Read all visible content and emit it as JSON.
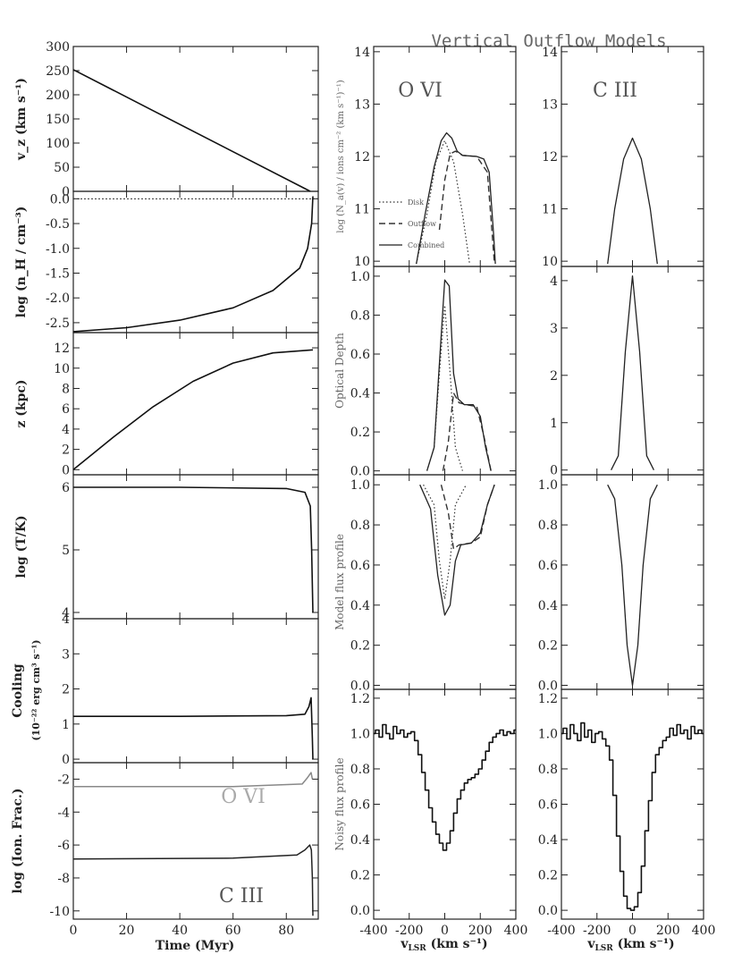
{
  "figure_title": "Vertical Outflow Models",
  "left_xlabel": "Time (Myr)",
  "right_xlabel": "v",
  "right_xlabel_sub": "LSR",
  "right_xlabel_units": " (km s⁻¹)",
  "ion_labels": [
    "O VI",
    "C III"
  ],
  "legend": [
    "Disk",
    "Outflow",
    "Combined"
  ],
  "chart_data": [
    {
      "panel": "vz",
      "type": "line",
      "ylabel": "v_z (km s⁻¹)",
      "ylim": [
        0,
        300
      ],
      "yticks": [
        0,
        50,
        100,
        150,
        200,
        250,
        300
      ],
      "x": [
        0,
        30,
        60,
        89
      ],
      "y": [
        252,
        167,
        82,
        0
      ]
    },
    {
      "panel": "density",
      "type": "line",
      "ylabel": "log (n_H / cm⁻³)",
      "ylim": [
        -2.7,
        0.15
      ],
      "yticks": [
        0.0,
        -0.5,
        -1.0,
        -1.5,
        -2.0,
        -2.5
      ],
      "x": [
        0,
        20,
        40,
        60,
        75,
        85,
        88,
        89.5,
        90
      ],
      "y": [
        -2.68,
        -2.6,
        -2.45,
        -2.2,
        -1.85,
        -1.4,
        -1.0,
        -0.5,
        0.05
      ]
    },
    {
      "panel": "height",
      "type": "line",
      "ylabel": "z (kpc)",
      "ylim": [
        -0.5,
        13.5
      ],
      "yticks": [
        0,
        2,
        4,
        6,
        8,
        10,
        12
      ],
      "x": [
        0,
        15,
        30,
        45,
        60,
        75,
        90
      ],
      "y": [
        0,
        3.2,
        6.2,
        8.7,
        10.5,
        11.5,
        11.8
      ]
    },
    {
      "panel": "temperature",
      "type": "line",
      "ylabel": "log (T/K)",
      "ylim": [
        3.9,
        6.2
      ],
      "yticks": [
        4,
        5,
        6
      ],
      "x": [
        0,
        40,
        80,
        87,
        89,
        89.5,
        90
      ],
      "y": [
        6.0,
        6.0,
        5.98,
        5.92,
        5.7,
        5.0,
        4.0
      ]
    },
    {
      "panel": "cooling",
      "type": "line",
      "ylabel": "Cooling (10⁻²² erg cm³ s⁻¹)",
      "ylim": [
        -0.1,
        4
      ],
      "yticks": [
        0,
        1,
        2,
        3,
        4
      ],
      "x": [
        0,
        40,
        80,
        87,
        88.5,
        89.3,
        89.8,
        90
      ],
      "y": [
        1.22,
        1.22,
        1.24,
        1.28,
        1.5,
        1.75,
        0.6,
        0.0
      ]
    },
    {
      "panel": "ionfrac",
      "type": "line",
      "ylabel": "log (Ion. Frac.)",
      "ylim": [
        -10.5,
        -1
      ],
      "yticks": [
        -2,
        -4,
        -6,
        -8,
        -10
      ],
      "series": [
        {
          "name": "O VI",
          "x": [
            0,
            60,
            86,
            88,
            89.3,
            89.8
          ],
          "y": [
            -2.45,
            -2.45,
            -2.3,
            -1.9,
            -1.6,
            -2.0
          ]
        },
        {
          "name": "C III",
          "x": [
            0,
            60,
            84,
            87,
            88.8,
            89.4,
            89.8,
            90
          ],
          "y": [
            -6.85,
            -6.8,
            -6.6,
            -6.3,
            -6.0,
            -6.3,
            -8.0,
            -10.3
          ]
        }
      ]
    },
    {
      "panel": "column_ovi",
      "type": "line",
      "ylabel": "log (N_a(v) / ions cm⁻² (km s⁻¹)⁻¹)",
      "ylim": [
        9.9,
        14.1
      ],
      "yticks": [
        10,
        11,
        12,
        13,
        14
      ],
      "series": [
        {
          "name": "Disk",
          "x": [
            -160,
            -100,
            -50,
            0,
            50,
            100,
            140
          ],
          "y": [
            9.95,
            10.9,
            11.9,
            12.3,
            11.9,
            10.9,
            9.95
          ]
        },
        {
          "name": "Outflow",
          "x": [
            -30,
            0,
            30,
            60,
            100,
            180,
            240,
            280
          ],
          "y": [
            10.6,
            11.55,
            12.05,
            12.1,
            12.02,
            12.0,
            11.7,
            9.95
          ]
        },
        {
          "name": "Combined",
          "x": [
            -160,
            -110,
            -60,
            -20,
            10,
            40,
            70,
            100,
            180,
            220,
            250,
            275,
            285
          ],
          "y": [
            9.95,
            10.9,
            11.8,
            12.3,
            12.45,
            12.35,
            12.1,
            12.02,
            12.0,
            11.95,
            11.7,
            10.5,
            9.95
          ]
        }
      ]
    },
    {
      "panel": "column_ciii",
      "type": "line",
      "ylabel": "",
      "ylim": [
        9.9,
        14.1
      ],
      "yticks": [
        10,
        11,
        12,
        13,
        14
      ],
      "series": [
        {
          "name": "Combined",
          "x": [
            -140,
            -100,
            -50,
            0,
            50,
            100,
            140
          ],
          "y": [
            9.95,
            11.0,
            11.95,
            12.35,
            11.95,
            11.0,
            9.95
          ]
        }
      ]
    },
    {
      "panel": "tau_ovi",
      "type": "line",
      "ylabel": "Optical Depth",
      "ylim": [
        -0.02,
        1.05
      ],
      "yticks": [
        0.0,
        0.2,
        0.4,
        0.6,
        0.8,
        1.0
      ],
      "series": [
        {
          "name": "Disk",
          "x": [
            -100,
            -60,
            -30,
            0,
            30,
            60,
            100
          ],
          "y": [
            0.0,
            0.12,
            0.5,
            0.85,
            0.5,
            0.12,
            0.0
          ]
        },
        {
          "name": "Outflow",
          "x": [
            -10,
            20,
            50,
            80,
            120,
            180,
            220,
            260
          ],
          "y": [
            0.0,
            0.15,
            0.4,
            0.35,
            0.34,
            0.33,
            0.18,
            0.0
          ]
        },
        {
          "name": "Combined",
          "x": [
            -100,
            -60,
            -30,
            0,
            25,
            50,
            75,
            110,
            160,
            200,
            230,
            260
          ],
          "y": [
            0.0,
            0.12,
            0.55,
            0.98,
            0.95,
            0.5,
            0.37,
            0.34,
            0.34,
            0.28,
            0.12,
            0.0
          ]
        }
      ]
    },
    {
      "panel": "tau_ciii",
      "type": "line",
      "ylabel": "",
      "ylim": [
        -0.1,
        4.3
      ],
      "yticks": [
        0,
        1,
        2,
        3,
        4
      ],
      "series": [
        {
          "name": "Combined",
          "x": [
            -120,
            -80,
            -40,
            0,
            40,
            80,
            120
          ],
          "y": [
            0.0,
            0.3,
            2.5,
            4.1,
            2.5,
            0.3,
            0.0
          ]
        }
      ]
    },
    {
      "panel": "model_ovi",
      "type": "line",
      "ylabel": "Model flux profile",
      "ylim": [
        -0.02,
        1.05
      ],
      "yticks": [
        0.0,
        0.2,
        0.4,
        0.6,
        0.8,
        1.0
      ],
      "series": [
        {
          "name": "Disk",
          "x": [
            -120,
            -60,
            -30,
            0,
            30,
            60,
            120
          ],
          "y": [
            1.0,
            0.9,
            0.62,
            0.43,
            0.62,
            0.9,
            1.0
          ]
        },
        {
          "name": "Outflow",
          "x": [
            -20,
            20,
            50,
            80,
            150,
            200,
            240,
            280
          ],
          "y": [
            1.0,
            0.86,
            0.68,
            0.7,
            0.71,
            0.74,
            0.9,
            1.0
          ]
        },
        {
          "name": "Combined",
          "x": [
            -140,
            -80,
            -40,
            0,
            30,
            60,
            90,
            150,
            200,
            240,
            280
          ],
          "y": [
            1.0,
            0.88,
            0.55,
            0.35,
            0.4,
            0.62,
            0.7,
            0.71,
            0.76,
            0.9,
            1.0
          ]
        }
      ]
    },
    {
      "panel": "model_ciii",
      "type": "line",
      "ylabel": "",
      "ylim": [
        -0.02,
        1.05
      ],
      "yticks": [
        0.0,
        0.2,
        0.4,
        0.6,
        0.8,
        1.0
      ],
      "series": [
        {
          "name": "Combined",
          "x": [
            -140,
            -100,
            -60,
            -30,
            0,
            30,
            60,
            100,
            140
          ],
          "y": [
            1.0,
            0.93,
            0.6,
            0.2,
            0.0,
            0.2,
            0.6,
            0.93,
            1.0
          ]
        }
      ]
    },
    {
      "panel": "noisy_ovi",
      "type": "line",
      "ylabel": "Noisy flux profile",
      "ylim": [
        -0.05,
        1.25
      ],
      "yticks": [
        0.0,
        0.2,
        0.4,
        0.6,
        0.8,
        1.0,
        1.2
      ],
      "x": [
        -400,
        -380,
        -360,
        -340,
        -320,
        -300,
        -280,
        -260,
        -240,
        -220,
        -200,
        -180,
        -160,
        -140,
        -120,
        -100,
        -80,
        -60,
        -40,
        -20,
        0,
        20,
        40,
        60,
        80,
        100,
        120,
        140,
        160,
        180,
        200,
        220,
        240,
        260,
        280,
        300,
        320,
        340,
        360,
        380,
        400
      ],
      "y": [
        1.0,
        1.02,
        0.98,
        1.05,
        1.0,
        0.97,
        1.04,
        1.0,
        1.02,
        0.98,
        1.0,
        1.01,
        0.96,
        0.88,
        0.78,
        0.68,
        0.58,
        0.5,
        0.43,
        0.38,
        0.34,
        0.38,
        0.45,
        0.55,
        0.63,
        0.68,
        0.72,
        0.74,
        0.75,
        0.77,
        0.8,
        0.85,
        0.9,
        0.95,
        0.98,
        1.0,
        1.02,
        0.99,
        1.01,
        1.0,
        1.02
      ]
    },
    {
      "panel": "noisy_ciii",
      "type": "line",
      "ylabel": "",
      "ylim": [
        -0.05,
        1.25
      ],
      "yticks": [
        0.0,
        0.2,
        0.4,
        0.6,
        0.8,
        1.0,
        1.2
      ],
      "x": [
        -400,
        -380,
        -360,
        -340,
        -320,
        -300,
        -280,
        -260,
        -240,
        -220,
        -200,
        -180,
        -160,
        -140,
        -120,
        -100,
        -80,
        -60,
        -40,
        -20,
        0,
        20,
        40,
        60,
        80,
        100,
        120,
        140,
        160,
        180,
        200,
        220,
        240,
        260,
        280,
        300,
        320,
        340,
        360,
        380,
        400
      ],
      "y": [
        1.0,
        1.03,
        0.97,
        1.05,
        1.0,
        0.96,
        1.06,
        0.98,
        1.02,
        0.95,
        1.0,
        1.01,
        0.97,
        0.93,
        0.85,
        0.65,
        0.42,
        0.22,
        0.08,
        0.01,
        0.0,
        0.02,
        0.1,
        0.25,
        0.45,
        0.62,
        0.78,
        0.88,
        0.92,
        0.96,
        0.98,
        1.03,
        0.99,
        1.05,
        1.0,
        1.02,
        0.97,
        1.04,
        1.0,
        1.02,
        1.0
      ]
    }
  ]
}
